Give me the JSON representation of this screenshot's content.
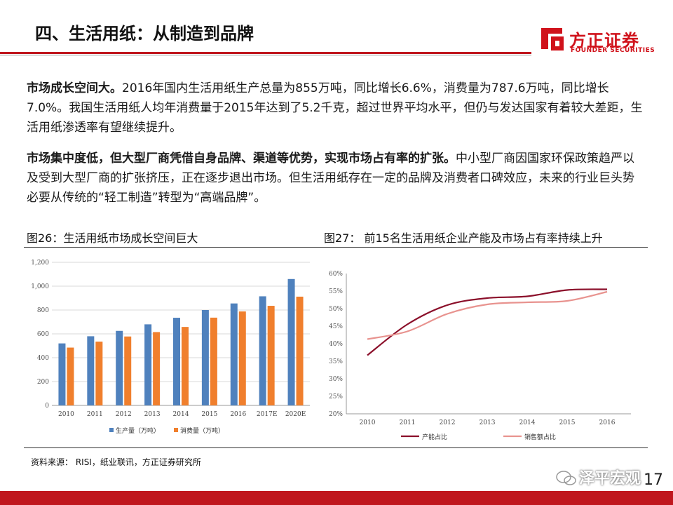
{
  "header": {
    "title": "四、生活用纸：从制造到品牌",
    "logo_cn": "方正证券",
    "logo_en": "FOUNDER SECURITIES"
  },
  "paragraphs": [
    {
      "bold": "市场成长空间大。",
      "text": "2016年国内生活用纸生产总量为855万吨，同比增长6.6%，消费量为787.6万吨，同比增长7.0%。我国生活用纸人均年消费量于2015年达到了5.2千克，超过世界平均水平，但仍与发达国家有着较大差距，生活用纸渗透率有望继续提升。"
    },
    {
      "bold": "市场集中度低，但大型厂商凭借自身品牌、渠道等优势，实现市场占有率的扩张。",
      "text": "中小型厂商因国家环保政策趋严以及受到大型厂商的扩张挤压，正在逐步退出市场。但生活用纸存在一定的品牌及消费者口碑效应，未来的行业巨头势必要从传统的“轻工制造”转型为“高端品牌”。"
    }
  ],
  "figures": {
    "fig1_caption": "图26：生活用纸市场成长空间巨大",
    "fig2_caption": "图27： 前15名生活用纸企业产能及市场占有率持续上升"
  },
  "chart_data": [
    {
      "type": "bar",
      "title": "图26：生活用纸市场成长空间巨大",
      "categories": [
        "2010",
        "2011",
        "2012",
        "2013",
        "2014",
        "2015",
        "2016",
        "2017E",
        "2020E"
      ],
      "series": [
        {
          "name": "生产量（万吨）",
          "color": "#4f81bd",
          "values": [
            520,
            580,
            625,
            680,
            735,
            800,
            855,
            915,
            1060
          ]
        },
        {
          "name": "消费量（万吨）",
          "color": "#f07f2d",
          "values": [
            485,
            535,
            578,
            615,
            658,
            736,
            788,
            835,
            912
          ]
        }
      ],
      "ylim": [
        0,
        1200
      ],
      "yticks": [
        0,
        200,
        400,
        600,
        800,
        1000,
        1200
      ],
      "ytick_labels": [
        "0",
        "200",
        "400",
        "600",
        "800",
        "1,000",
        "1,200"
      ],
      "legend_position": "bottom"
    },
    {
      "type": "line",
      "title": "图27： 前15名生活用纸企业产能及市场占有率持续上升",
      "x": [
        "2010",
        "2011",
        "2012",
        "2013",
        "2014",
        "2015",
        "2016"
      ],
      "series": [
        {
          "name": "产能占比",
          "color": "#8b0f2a",
          "values": [
            36.7,
            45.5,
            51.0,
            53.0,
            53.5,
            55.3,
            55.5
          ]
        },
        {
          "name": "销售额占比",
          "color": "#e8938f",
          "values": [
            41.3,
            43.5,
            48.5,
            51.2,
            51.8,
            52.2,
            54.8
          ]
        }
      ],
      "ylim": [
        20,
        60
      ],
      "yticks": [
        20,
        25,
        30,
        35,
        40,
        45,
        50,
        55,
        60
      ],
      "ytick_labels": [
        "20%",
        "25%",
        "30%",
        "35%",
        "40%",
        "45%",
        "50%",
        "55%",
        "60%"
      ],
      "legend_position": "bottom"
    }
  ],
  "source": "资料来源： RISI，纸业联讯，方正证券研究所",
  "watermark": "泽平宏观",
  "page_number": "17",
  "colors": {
    "brand_red": "#c0171e"
  }
}
